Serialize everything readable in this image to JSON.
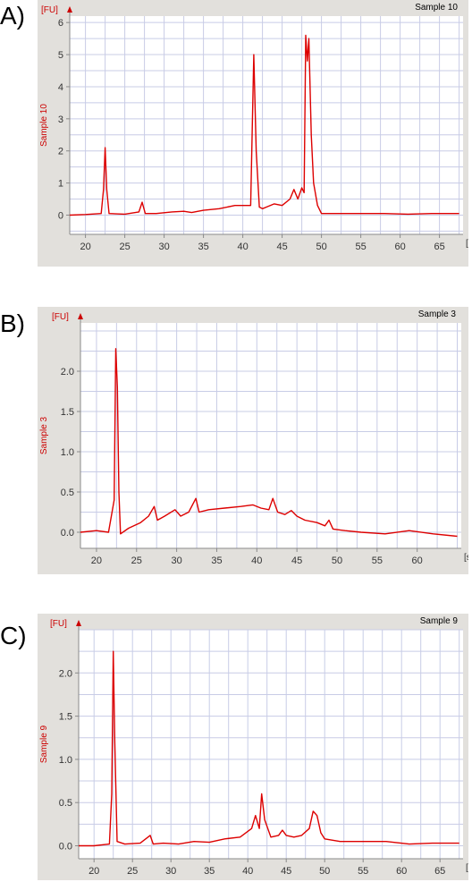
{
  "panels": [
    {
      "letter": "A)"
    },
    {
      "letter": "B)"
    },
    {
      "letter": "C)"
    }
  ],
  "chart_data": [
    {
      "type": "line",
      "title": "Sample 10",
      "ylabel": "Sample 10",
      "yunit": "[FU]",
      "xunit": "[s]",
      "xlim": [
        18,
        68
      ],
      "ylim": [
        -0.6,
        6.2
      ],
      "xticks": [
        20,
        25,
        30,
        35,
        40,
        45,
        50,
        55,
        60,
        65
      ],
      "yticks": [
        0,
        1,
        2,
        3,
        4,
        5,
        6
      ],
      "grid": true,
      "color": "#dd0000",
      "series": [
        {
          "x": [
            18,
            20,
            22,
            22.3,
            22.5,
            22.7,
            23,
            25,
            26.8,
            27.2,
            27.6,
            29,
            31,
            32.5,
            33.5,
            35,
            37,
            39,
            40.5,
            41.0,
            41.4,
            41.7,
            42.1,
            42.5,
            43,
            44,
            45,
            46,
            46.5,
            47,
            47.5,
            47.8,
            48.0,
            48.2,
            48.4,
            48.7,
            49.0,
            49.5,
            50,
            52,
            55,
            58,
            61,
            64,
            67.5
          ],
          "y": [
            0,
            0.02,
            0.05,
            0.8,
            2.1,
            0.8,
            0.05,
            0.03,
            0.1,
            0.4,
            0.05,
            0.05,
            0.1,
            0.12,
            0.08,
            0.15,
            0.2,
            0.3,
            0.3,
            0.3,
            5.0,
            2.0,
            0.25,
            0.2,
            0.25,
            0.35,
            0.3,
            0.5,
            0.8,
            0.5,
            0.85,
            0.7,
            5.6,
            4.8,
            5.5,
            2.5,
            1.0,
            0.3,
            0.05,
            0.05,
            0.05,
            0.05,
            0.03,
            0.05,
            0.05
          ]
        }
      ]
    },
    {
      "type": "line",
      "title": "Sample 3",
      "ylabel": "Sample 3",
      "yunit": "[FU]",
      "xunit": "[s]",
      "xlim": [
        18,
        65.5
      ],
      "ylim": [
        -0.2,
        2.6
      ],
      "xticks": [
        20,
        25,
        30,
        35,
        40,
        45,
        50,
        55,
        60
      ],
      "yticks": [
        0.0,
        0.5,
        1.0,
        1.5,
        2.0
      ],
      "ytick_labels": [
        "0.0",
        "0.5",
        "1.0",
        "1.5",
        "2.0"
      ],
      "grid": true,
      "color": "#dd0000",
      "series": [
        {
          "x": [
            18,
            20,
            21.5,
            22.2,
            22.4,
            22.6,
            22.8,
            23.0,
            24,
            25.5,
            26.5,
            27.2,
            27.6,
            28.5,
            29.8,
            30.5,
            31.5,
            32.4,
            32.8,
            34,
            36,
            38,
            39.5,
            40.5,
            41.5,
            42.0,
            42.6,
            43.5,
            44.3,
            45,
            46,
            47.5,
            48.5,
            49.0,
            49.5,
            51,
            53,
            56,
            59,
            62,
            65
          ],
          "y": [
            0.0,
            0.02,
            0.0,
            0.4,
            2.28,
            1.8,
            0.5,
            -0.02,
            0.05,
            0.12,
            0.2,
            0.32,
            0.15,
            0.2,
            0.28,
            0.2,
            0.25,
            0.42,
            0.25,
            0.28,
            0.3,
            0.32,
            0.34,
            0.3,
            0.28,
            0.42,
            0.25,
            0.22,
            0.27,
            0.2,
            0.15,
            0.12,
            0.08,
            0.15,
            0.04,
            0.02,
            0.0,
            -0.02,
            0.02,
            -0.02,
            -0.05
          ]
        }
      ]
    },
    {
      "type": "line",
      "title": "Sample 9",
      "ylabel": "Sample 9",
      "yunit": "[FU]",
      "xunit": "[s]",
      "xlim": [
        18,
        68
      ],
      "ylim": [
        -0.15,
        2.5
      ],
      "xticks": [
        20,
        25,
        30,
        35,
        40,
        45,
        50,
        55,
        60,
        65
      ],
      "yticks": [
        0.0,
        0.5,
        1.0,
        1.5,
        2.0
      ],
      "ytick_labels": [
        "0.0",
        "0.5",
        "1.0",
        "1.5",
        "2.0"
      ],
      "grid": true,
      "color": "#dd0000",
      "series": [
        {
          "x": [
            18,
            20,
            22,
            22.3,
            22.5,
            22.7,
            23.0,
            24,
            26,
            27.3,
            27.7,
            29,
            31,
            33,
            35,
            37,
            39,
            40.5,
            41.0,
            41.5,
            41.8,
            42.2,
            43,
            44,
            44.5,
            45,
            46,
            47,
            48,
            48.5,
            49.0,
            49.5,
            50,
            52,
            55,
            58,
            61,
            64,
            67.5
          ],
          "y": [
            0.0,
            0.0,
            0.02,
            0.6,
            2.25,
            1.2,
            0.05,
            0.02,
            0.03,
            0.12,
            0.02,
            0.03,
            0.02,
            0.05,
            0.04,
            0.08,
            0.1,
            0.2,
            0.35,
            0.2,
            0.6,
            0.3,
            0.1,
            0.12,
            0.18,
            0.12,
            0.1,
            0.12,
            0.2,
            0.4,
            0.35,
            0.15,
            0.08,
            0.05,
            0.05,
            0.05,
            0.02,
            0.03,
            0.03
          ]
        }
      ]
    }
  ]
}
